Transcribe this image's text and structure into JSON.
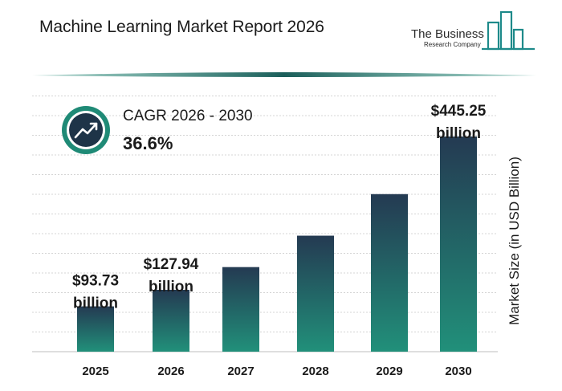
{
  "header": {
    "title": "Machine Learning Market Report 2026",
    "logo_line1": "The Business",
    "logo_line2": "Research Company"
  },
  "cagr": {
    "label": "CAGR 2026 - 2030",
    "value": "36.6%",
    "icon": "trend-up-icon"
  },
  "colors": {
    "bar_top": "#243a52",
    "bar_bottom": "#21907a",
    "accent_teal": "#1f8a76",
    "dark_navy": "#1e3448",
    "grid": "#d4d4d4"
  },
  "chart_data": {
    "type": "bar",
    "title": "Machine Learning Market Report 2026",
    "categories": [
      "2025",
      "2026",
      "2027",
      "2028",
      "2029",
      "2030"
    ],
    "values": [
      93.73,
      127.94,
      175.0,
      240.0,
      326.0,
      445.25
    ],
    "data_labels": [
      {
        "index": 0,
        "line1": "$93.73",
        "line2": "billion"
      },
      {
        "index": 1,
        "line1": "$127.94",
        "line2": "billion"
      },
      {
        "index": 5,
        "line1": "$445.25",
        "line2": "billion"
      }
    ],
    "ylabel": "Market Size (in USD Billion)",
    "xlabel": "",
    "ylim": [
      0,
      500
    ],
    "grid": true
  }
}
